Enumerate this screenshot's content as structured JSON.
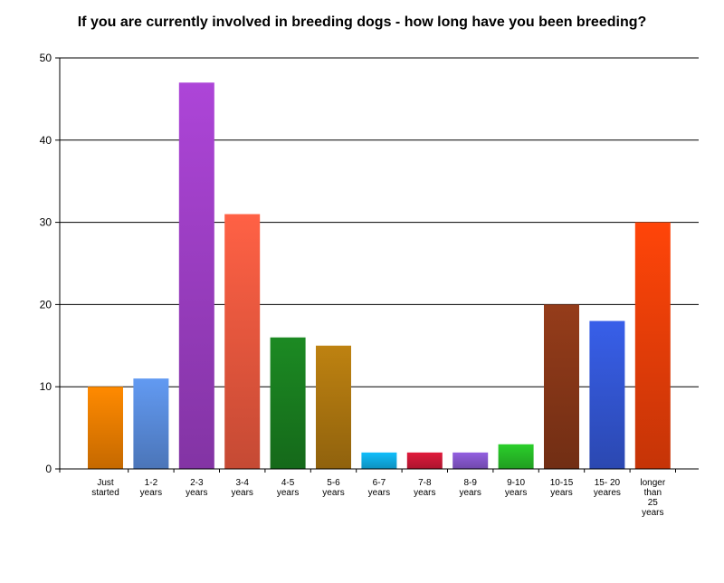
{
  "chart_data": {
    "type": "bar",
    "title": "If you are currently involved in breeding dogs - how long  have you been breeding?",
    "categories": [
      [
        "Just",
        "started"
      ],
      [
        "1-2",
        "years"
      ],
      [
        "2-3",
        "years"
      ],
      [
        "3-4",
        "years"
      ],
      [
        "4-5",
        "years"
      ],
      [
        "5-6",
        "years"
      ],
      [
        "6-7",
        "years"
      ],
      [
        "7-8",
        "years"
      ],
      [
        "8-9",
        "years"
      ],
      [
        "9-10",
        "years"
      ],
      [
        "10-15",
        "years"
      ],
      [
        "15- 20",
        "yeares"
      ],
      [
        "longer",
        "than",
        "25",
        "years"
      ]
    ],
    "values": [
      10,
      11,
      47,
      31,
      16,
      15,
      2,
      2,
      2,
      3,
      20,
      18,
      30
    ],
    "colors": [
      "#f08000",
      "#5b8fe0",
      "#a040c8",
      "#f05a40",
      "#1a8020",
      "#b07810",
      "#10b0e8",
      "#d01838",
      "#8858d0",
      "#28c028",
      "#8a3818",
      "#3458d8",
      "#f04008"
    ],
    "ylim": [
      0,
      50
    ],
    "yticks": [
      0,
      10,
      20,
      30,
      40,
      50
    ],
    "grid": true,
    "legend": "none"
  }
}
